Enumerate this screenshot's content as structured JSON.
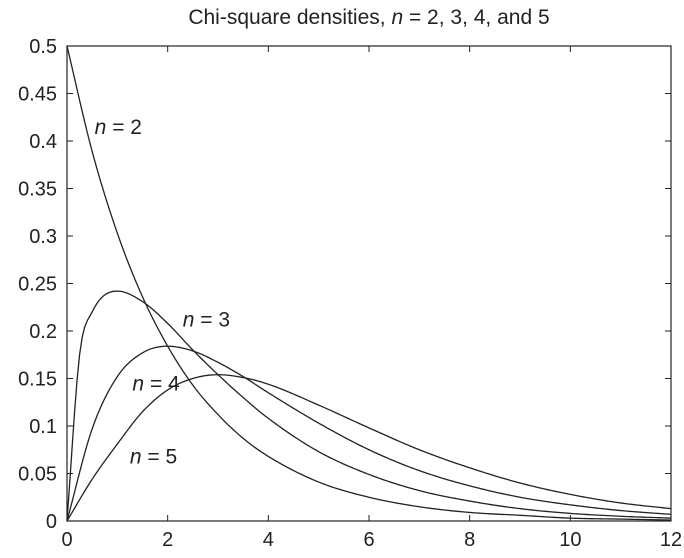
{
  "chart_data": {
    "type": "line",
    "title": {
      "prefix": "Chi-square densities, ",
      "var": "n",
      "suffix": " = 2, 3, 4, and 5"
    },
    "xlabel": "",
    "ylabel": "",
    "xlim": [
      0,
      12
    ],
    "ylim": [
      0,
      0.5
    ],
    "x_ticks": [
      0,
      2,
      4,
      6,
      8,
      10,
      12
    ],
    "y_ticks": [
      0,
      0.05,
      0.1,
      0.15,
      0.2,
      0.25,
      0.3,
      0.35,
      0.4,
      0.45,
      0.5
    ],
    "x_tick_labels": [
      "0",
      "2",
      "4",
      "6",
      "8",
      "10",
      "12"
    ],
    "y_tick_labels": [
      "0",
      "0.05",
      "0.1",
      "0.15",
      "0.2",
      "0.25",
      "0.3",
      "0.35",
      "0.4",
      "0.45",
      "0.5"
    ],
    "grid": false,
    "line_color": "#222222",
    "series": [
      {
        "df": 2,
        "label_var": "n",
        "label_value": "2",
        "label_at": [
          0.55,
          0.415
        ],
        "x": [
          0,
          0.5,
          1,
          1.5,
          2,
          2.5,
          3,
          3.5,
          4,
          5,
          6,
          7,
          8,
          9,
          10,
          11,
          12
        ],
        "values": [
          0.5,
          0.389,
          0.303,
          0.236,
          0.184,
          0.143,
          0.112,
          0.087,
          0.068,
          0.041,
          0.025,
          0.015,
          0.009,
          0.006,
          0.003,
          0.002,
          0.001
        ]
      },
      {
        "df": 3,
        "label_var": "n",
        "label_value": "3",
        "label_at": [
          2.3,
          0.212
        ],
        "x": [
          0,
          0.25,
          0.5,
          1,
          1.5,
          2,
          2.5,
          3,
          3.5,
          4,
          5,
          6,
          7,
          8,
          9,
          10,
          11,
          12
        ],
        "values": [
          0,
          0.175,
          0.22,
          0.242,
          0.231,
          0.208,
          0.18,
          0.154,
          0.13,
          0.108,
          0.073,
          0.049,
          0.032,
          0.021,
          0.013,
          0.008,
          0.005,
          0.003
        ]
      },
      {
        "df": 4,
        "label_var": "n",
        "label_value": "4",
        "label_at": [
          1.3,
          0.145
        ],
        "x": [
          0,
          0.5,
          1,
          1.5,
          2,
          2.5,
          3,
          3.5,
          4,
          5,
          6,
          7,
          8,
          9,
          10,
          11,
          12
        ],
        "values": [
          0,
          0.097,
          0.152,
          0.177,
          0.184,
          0.179,
          0.167,
          0.152,
          0.135,
          0.103,
          0.075,
          0.053,
          0.037,
          0.025,
          0.017,
          0.011,
          0.007
        ]
      },
      {
        "df": 5,
        "label_var": "n",
        "label_value": "5",
        "label_at": [
          1.25,
          0.068
        ],
        "x": [
          0,
          0.5,
          1,
          1.5,
          2,
          2.5,
          3,
          3.5,
          4,
          5,
          6,
          7,
          8,
          9,
          10,
          11,
          12
        ],
        "values": [
          0,
          0.044,
          0.081,
          0.115,
          0.138,
          0.15,
          0.154,
          0.151,
          0.144,
          0.122,
          0.098,
          0.075,
          0.056,
          0.04,
          0.028,
          0.019,
          0.013
        ]
      }
    ]
  }
}
